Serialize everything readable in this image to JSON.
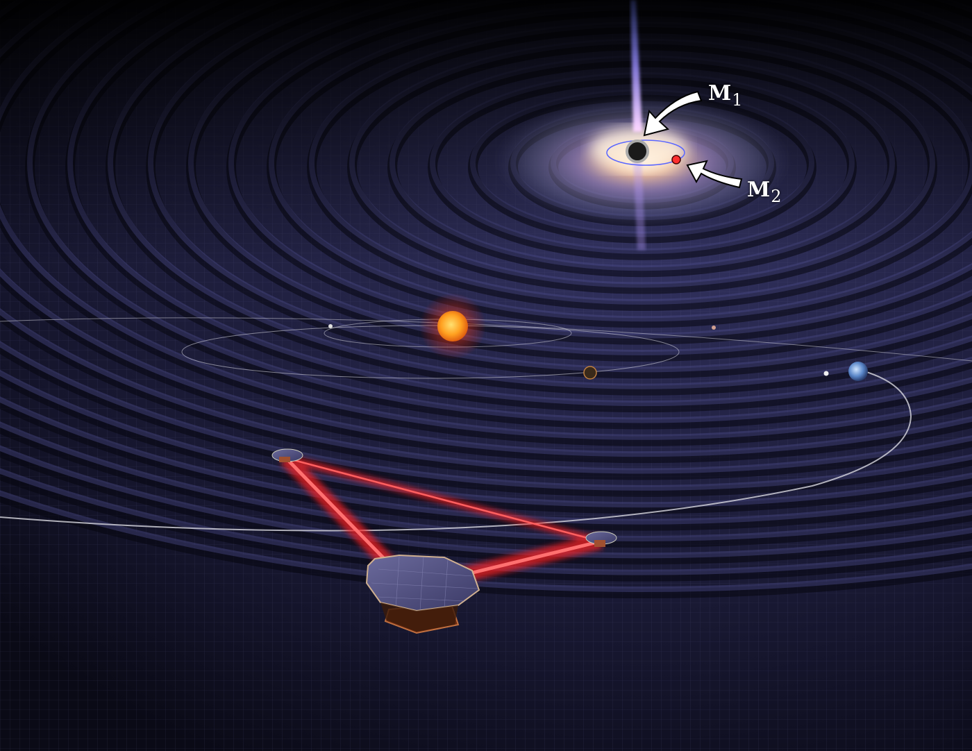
{
  "annotations": {
    "m1": {
      "symbol": "M",
      "subscript": "1"
    },
    "m2": {
      "symbol": "M",
      "subscript": "2"
    }
  },
  "palette": {
    "space": "#05050d",
    "fabric": "#2a2a52",
    "grid_line": "#4a4a7a",
    "laser": "#ff2020",
    "sun": "#ffa030",
    "galaxy_core": "#ffe6d0",
    "jet": "#8a7dff",
    "orbit": "#d8d8e0",
    "arrow": "#ffffff"
  },
  "objects": {
    "black_hole": "supermassive-black-hole",
    "companion": "companion-object",
    "star": "sun",
    "planets": [
      "mercury",
      "venus",
      "earth",
      "moon",
      "mars"
    ],
    "detector": "three-spacecraft-laser-interferometer"
  }
}
